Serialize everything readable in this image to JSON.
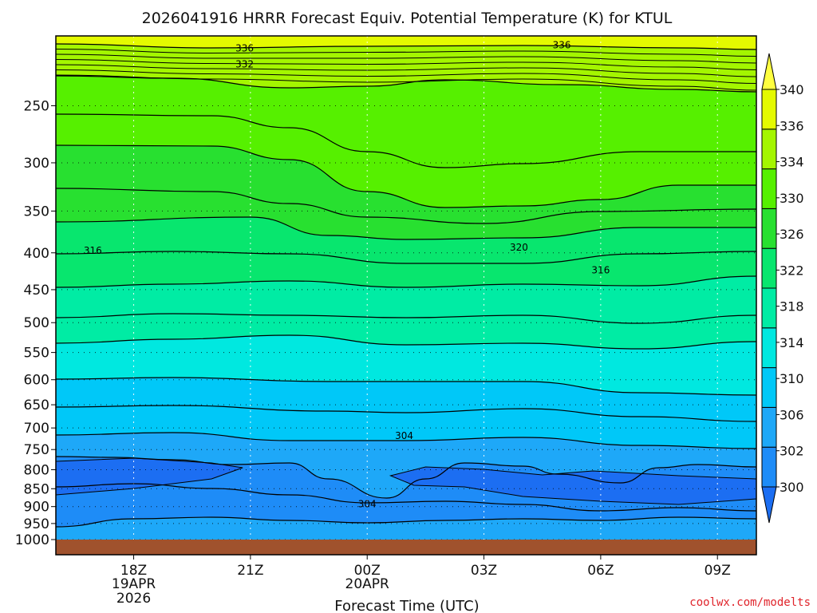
{
  "chart_data": {
    "type": "contour",
    "title": "2026041916 HRRR Forecast Equiv. Potential Temperature (K) for KTUL",
    "xlabel": "Forecast Time (UTC)",
    "ylabel": "",
    "credit": "coolwx.com/modelts",
    "x_ticks": [
      {
        "label": "18Z",
        "sub1": "19APR",
        "sub2": "2026",
        "hours": 2
      },
      {
        "label": "21Z",
        "sub1": "",
        "sub2": "",
        "hours": 5
      },
      {
        "label": "00Z",
        "sub1": "20APR",
        "sub2": "",
        "hours": 8
      },
      {
        "label": "03Z",
        "sub1": "",
        "sub2": "",
        "hours": 11
      },
      {
        "label": "06Z",
        "sub1": "",
        "sub2": "",
        "hours": 14
      },
      {
        "label": "09Z",
        "sub1": "",
        "sub2": "",
        "hours": 17
      }
    ],
    "x_range_hours": [
      0,
      18
    ],
    "y_ticks": [
      250,
      300,
      350,
      400,
      450,
      500,
      550,
      600,
      650,
      700,
      750,
      800,
      850,
      900,
      950,
      1000
    ],
    "y_range_hPa": [
      200,
      1000
    ],
    "y_scale": "log-pressure",
    "colorbar": {
      "levels": [
        300,
        302,
        306,
        310,
        314,
        318,
        322,
        326,
        330,
        334,
        336,
        340
      ],
      "colors": [
        "#1c6ef2",
        "#1e8cf7",
        "#1ea8f8",
        "#00c8f8",
        "#00e8e0",
        "#00eca4",
        "#08e66e",
        "#28e030",
        "#56f000",
        "#a4f600",
        "#e4fa00",
        "#ffff40"
      ],
      "extend": "both"
    },
    "contour_labels": [
      {
        "text": "336",
        "t": 4.85,
        "p": 208
      },
      {
        "text": "336",
        "t": 13.0,
        "p": 206
      },
      {
        "text": "332",
        "t": 4.85,
        "p": 219
      },
      {
        "text": "316",
        "t": 0.95,
        "p": 397
      },
      {
        "text": "320",
        "t": 11.9,
        "p": 393
      },
      {
        "text": "316",
        "t": 14.0,
        "p": 423
      },
      {
        "text": "304",
        "t": 8.95,
        "p": 718
      },
      {
        "text": "304",
        "t": 8.0,
        "p": 893
      }
    ],
    "grid": true
  }
}
